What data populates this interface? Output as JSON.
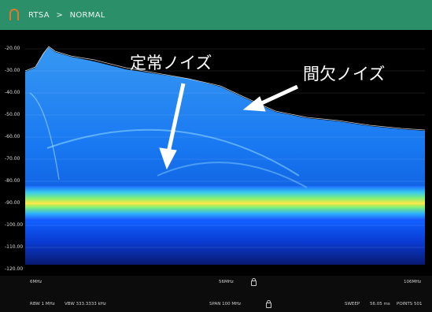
{
  "header": {
    "breadcrumb": "RTSA",
    "separator": ">",
    "mode": "NORMAL"
  },
  "y_axis": {
    "ticks": [
      "-20.00",
      "-30.00",
      "-40.00",
      "-50.00",
      "-60.00",
      "-70.00",
      "-80.00",
      "-90.00",
      "-100.00",
      "-110.00",
      "-120.00"
    ]
  },
  "x_axis": {
    "start": "6MHz",
    "center": "56MHz",
    "stop": "106MHz"
  },
  "status": {
    "rbw": "RBW 1 MHz",
    "vbw": "VBW 333.3333 kHz",
    "span": "SPAN 100 MHz",
    "sweep": "SWEEP",
    "sweep_time": "56.05 ms",
    "points": "POINTS 501"
  },
  "annotations": {
    "steady_noise": "定常ノイズ",
    "intermittent_noise": "間欠ノイズ"
  },
  "colors": {
    "titlebar": "#2b8f6a",
    "logo": "#e07a2a"
  }
}
